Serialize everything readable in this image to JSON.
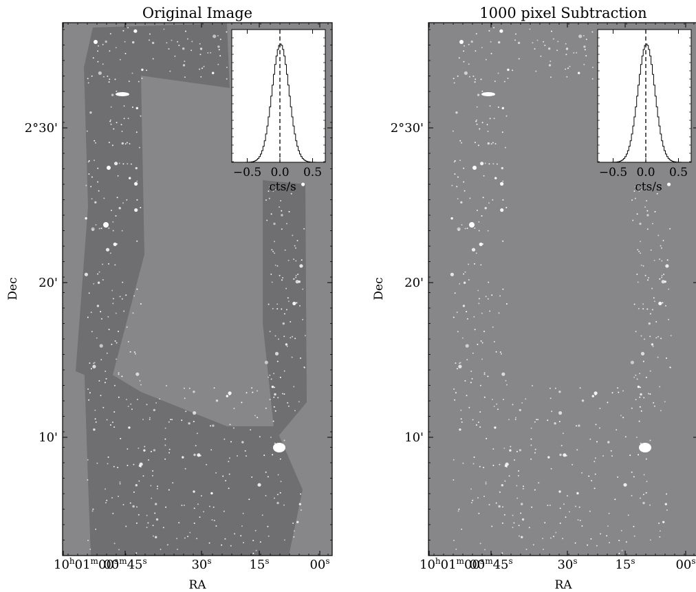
{
  "colors": {
    "background": "#878789",
    "footprint": "#6f6f72",
    "frame": "#000000",
    "star": "#ffffff"
  },
  "panels": [
    {
      "key": "original",
      "title": "Original Image",
      "xlabel": "RA",
      "ylabel": "Dec",
      "xticks": [
        "10h01m00s",
        "00m45s",
        "30s",
        "15s",
        "00s"
      ],
      "yticks": [
        "2°30'",
        "20'",
        "10'"
      ],
      "inset": {
        "xlabel": "cts/s",
        "xticks": [
          "−0.5",
          "0.0",
          "0.5"
        ]
      },
      "footprint_visible": true
    },
    {
      "key": "subtracted",
      "title": "1000 pixel Subtraction",
      "xlabel": "RA",
      "ylabel": "Dec",
      "xticks": [
        "10h01m00s",
        "00m45s",
        "30s",
        "15s",
        "00s"
      ],
      "yticks": [
        "2°30'",
        "20'",
        "10'"
      ],
      "inset": {
        "xlabel": "cts/s",
        "xticks": [
          "−0.5",
          "0.0",
          "0.5"
        ]
      },
      "footprint_visible": false
    }
  ]
}
